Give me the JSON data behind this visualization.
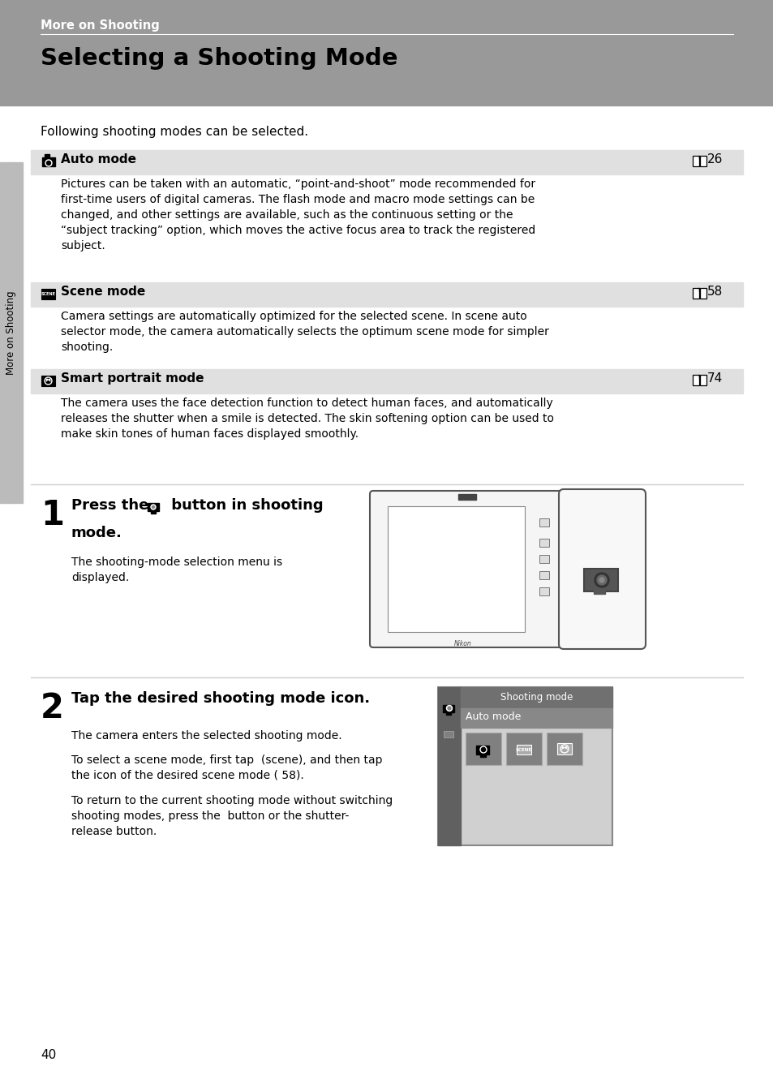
{
  "page_bg": "#ffffff",
  "header_bg": "#999999",
  "header_text": "More on Shooting",
  "header_text_color": "#ffffff",
  "title": "Selecting a Shooting Mode",
  "title_color": "#000000",
  "intro_text": "Following shooting modes can be selected.",
  "row_bg": "#e0e0e0",
  "modes": [
    {
      "name": "Auto mode",
      "page_ref": "26",
      "description": "Pictures can be taken with an automatic, “point-and-shoot” mode recommended for\nfirst-time users of digital cameras. The flash mode and macro mode settings can be\nchanged, and other settings are available, such as the continuous setting or the\n“subject tracking” option, which moves the active focus area to track the registered\nsubject."
    },
    {
      "name": "Scene mode",
      "page_ref": "58",
      "description": "Camera settings are automatically optimized for the selected scene. In scene auto\nselector mode, the camera automatically selects the optimum scene mode for simpler\nshooting."
    },
    {
      "name": "Smart portrait mode",
      "page_ref": "74",
      "description": "The camera uses the face detection function to detect human faces, and automatically\nreleases the shutter when a smile is detected. The skin softening option can be used to\nmake skin tones of human faces displayed smoothly."
    }
  ],
  "step1_num": "1",
  "step1_desc": "The shooting-mode selection menu is\ndisplayed.",
  "step2_num": "2",
  "step2_title": "Tap the desired shooting mode icon.",
  "step2_desc1": "The camera enters the selected shooting mode.",
  "step2_desc2": "To select a scene mode, first tap  (scene), and then tap\nthe icon of the desired scene mode ( 58).",
  "step2_desc3": "To return to the current shooting mode without switching\nshooting modes, press the  button or the shutter-\nrelease button.",
  "sidebar_text": "More on Shooting",
  "sidebar_bg": "#bbbbbb",
  "page_num": "40",
  "shooting_mode_label": "Shooting mode",
  "auto_mode_label": "Auto mode",
  "line_color": "#aaaaaa",
  "divider_color": "#cccccc"
}
